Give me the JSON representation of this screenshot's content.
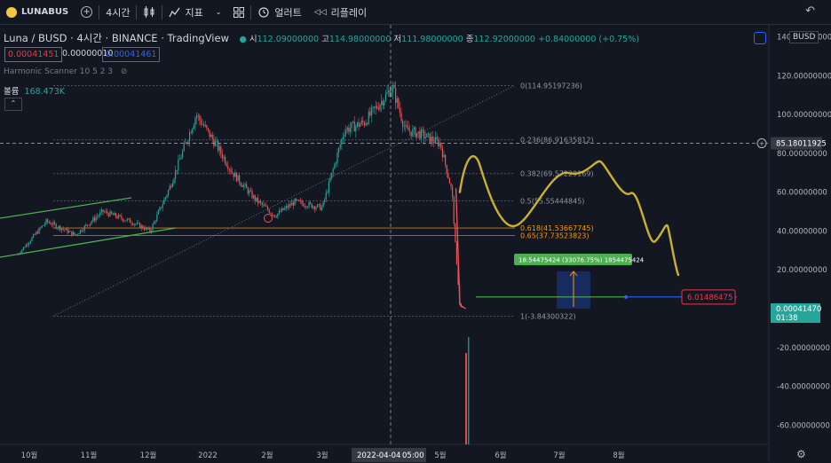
{
  "toolbar": {
    "symbol": "LUNABUS",
    "interval": "4시간",
    "indicators": "지표",
    "alert": "얼러트",
    "replay": "리플레이"
  },
  "legend": {
    "title": "Luna / BUSD · 4시간 · BINANCE · TradingView",
    "open_label": "시",
    "open": "112.09000000",
    "high_label": "고",
    "high": "114.98000000",
    "low_label": "저",
    "low": "111.98000000",
    "close_label": "종",
    "close": "112.92000000",
    "change": "+0.84000000 (+0.75%)",
    "bid": "0.00041451",
    "spread": "0.00000010",
    "ask": "0.00041461",
    "scanner": "Harmonic Scanner 10 5 2 3",
    "volume_label": "볼륨",
    "volume": "168.473K"
  },
  "colors": {
    "up": "#26a69a",
    "down": "#ef5350",
    "fib": "#787b86",
    "fib_orange": "#ff9800",
    "projection": "#c9b12e",
    "channel": "#4caf50",
    "accent": "#2962ff"
  },
  "chart_data": {
    "type": "candlestick",
    "title": "Luna / BUSD · 4시간 · BINANCE · TradingView",
    "currency": "BUSD",
    "x_ticks": [
      "10월",
      "11월",
      "12월",
      "2022",
      "2월",
      "3월",
      "2022-04-04",
      "05:00",
      "5월",
      "6월",
      "7월",
      "8월"
    ],
    "y_ticks": [
      "140.00000000",
      "120.00000000",
      "100.00000000",
      "80.00000000",
      "60.00000000",
      "40.00000000",
      "20.00000000",
      "-20.00000000",
      "-40.00000000",
      "-60.00000000"
    ],
    "ylim": [
      -65,
      142
    ],
    "price_path": [
      [
        "2021-09-25",
        28
      ],
      [
        "2021-10-10",
        45
      ],
      [
        "2021-10-25",
        38
      ],
      [
        "2021-11-08",
        50
      ],
      [
        "2021-11-22",
        45
      ],
      [
        "2021-12-02",
        40
      ],
      [
        "2021-12-12",
        62
      ],
      [
        "2021-12-26",
        100
      ],
      [
        "2022-01-05",
        85
      ],
      [
        "2022-01-14",
        70
      ],
      [
        "2022-01-26",
        56
      ],
      [
        "2022-02-05",
        48
      ],
      [
        "2022-02-15",
        55
      ],
      [
        "2022-03-01",
        52
      ],
      [
        "2022-03-12",
        92
      ],
      [
        "2022-03-22",
        96
      ],
      [
        "2022-04-05",
        114
      ],
      [
        "2022-04-12",
        92
      ],
      [
        "2022-04-20",
        90
      ],
      [
        "2022-05-01",
        85
      ],
      [
        "2022-05-07",
        60
      ],
      [
        "2022-05-09",
        28
      ],
      [
        "2022-05-11",
        1
      ],
      [
        "2022-05-14",
        0.0004
      ]
    ],
    "projection_path": [
      [
        "2022-05-17",
        60
      ],
      [
        "2022-05-25",
        80
      ],
      [
        "2022-06-15",
        42
      ],
      [
        "2022-07-12",
        76
      ],
      [
        "2022-07-28",
        62
      ],
      [
        "2022-08-05",
        32
      ],
      [
        "2022-08-18",
        18
      ]
    ],
    "fib_levels": [
      {
        "ratio": 0,
        "label": "0(114.95197236)",
        "value": 114.95197236
      },
      {
        "ratio": 0.236,
        "label": "0.236(86.91635812)",
        "value": 86.91635812
      },
      {
        "ratio": 0.382,
        "label": "0.382(69.57229169)",
        "value": 69.57229169
      },
      {
        "ratio": 0.5,
        "label": "0.5(55.55444845)",
        "value": 55.55444845
      },
      {
        "ratio": 0.618,
        "label": "0.618(41.53667745)",
        "value": 41.53667745
      },
      {
        "ratio": 0.65,
        "label": "0.65(37.73523823)",
        "value": 37.73523823
      },
      {
        "ratio": 1,
        "label": "1(-3.84300322)",
        "value": -3.84300322
      }
    ],
    "measure_label": "18.54475424 (33076.75%) 1854475424",
    "last_price": "0.00041470",
    "countdown": "01:38",
    "crosshair_price": "85.18011925",
    "target_price": "6.01486475",
    "target_value": 6.01486475,
    "crosshair_value": 85.18011925
  }
}
